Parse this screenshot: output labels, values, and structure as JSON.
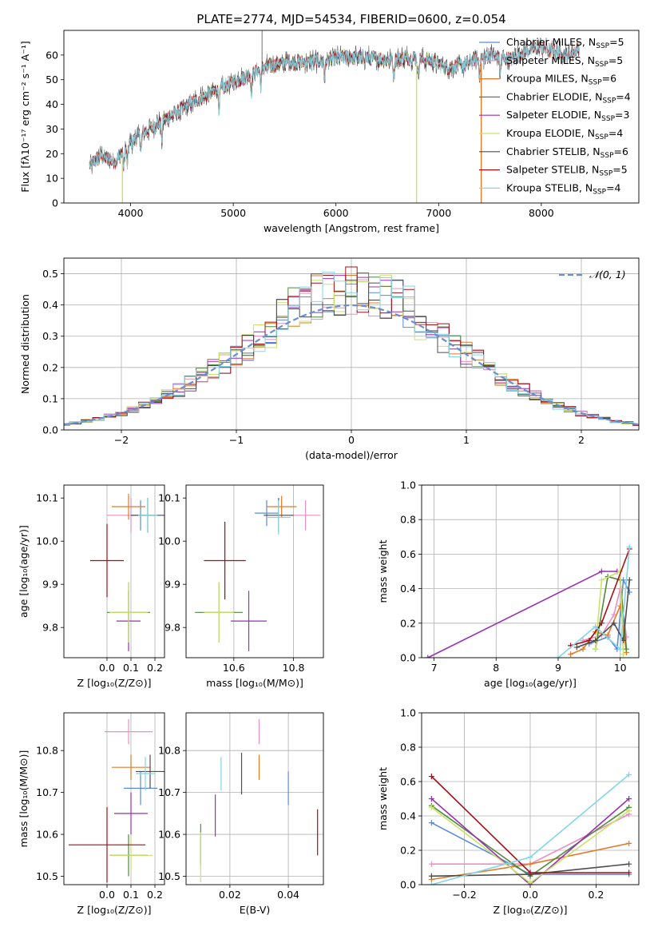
{
  "figure_title": "PLATE=2774, MJD=54534, FIBERID=0600, z=0.054",
  "colors": {
    "chab_miles": "#5b8bd8",
    "salp_miles": "#e98fc2",
    "krou_miles": "#e07b2a",
    "chab_elodie": "#4f8a3c",
    "salp_elodie": "#9b2fb5",
    "krou_elodie": "#c9e36a",
    "chab_stelib": "#4d4d4d",
    "salp_stelib": "#a40f1a",
    "krou_stelib": "#84d6e3",
    "normal_curve": "#6a8fd0",
    "grid": "#b0b0b0"
  },
  "chart_data": [
    {
      "id": "spectrum",
      "type": "line",
      "title": "PLATE=2774, MJD=54534, FIBERID=0600, z=0.054",
      "xlabel": "wavelength [Angstrom, rest frame]",
      "ylabel": "Flux [fλ10⁻¹⁷ erg cm⁻² s⁻¹ A⁻¹]",
      "xlim": [
        3350,
        8950
      ],
      "ylim": [
        0,
        70
      ],
      "xticks": [
        4000,
        5000,
        6000,
        7000,
        8000
      ],
      "yticks": [
        0,
        10,
        20,
        30,
        40,
        50,
        60
      ],
      "grid": false,
      "legend_position": "top-right",
      "legend": [
        {
          "label": "Chabrier MILES, N",
          "sub": "SSP",
          "tail": "=5",
          "color": "chab_miles"
        },
        {
          "label": "Salpeter MILES, N",
          "sub": "SSP",
          "tail": "=5",
          "color": "salp_miles"
        },
        {
          "label": "Kroupa MILES, N",
          "sub": "SSP",
          "tail": "=6",
          "color": "krou_miles"
        },
        {
          "label": "Chabrier ELODIE, N",
          "sub": "SSP",
          "tail": "=4",
          "color": "chab_elodie"
        },
        {
          "label": "Salpeter ELODIE, N",
          "sub": "SSP",
          "tail": "=3",
          "color": "salp_elodie"
        },
        {
          "label": "Kroupa ELODIE, N",
          "sub": "SSP",
          "tail": "=4",
          "color": "krou_elodie"
        },
        {
          "label": "Chabrier STELIB, N",
          "sub": "SSP",
          "tail": "=6",
          "color": "chab_stelib"
        },
        {
          "label": "Salpeter STELIB, N",
          "sub": "SSP",
          "tail": "=5",
          "color": "salp_stelib"
        },
        {
          "label": "Kroupa STELIB, N",
          "sub": "SSP",
          "tail": "=4",
          "color": "krou_stelib"
        }
      ],
      "continuum": [
        [
          3600,
          15
        ],
        [
          3700,
          19
        ],
        [
          3850,
          17
        ],
        [
          3950,
          22
        ],
        [
          4100,
          28
        ],
        [
          4300,
          33
        ],
        [
          4500,
          38
        ],
        [
          4700,
          43
        ],
        [
          4900,
          47
        ],
        [
          5100,
          51
        ],
        [
          5300,
          55
        ],
        [
          5500,
          57
        ],
        [
          5700,
          57
        ],
        [
          5900,
          58
        ],
        [
          6100,
          59
        ],
        [
          6300,
          59
        ],
        [
          6500,
          58
        ],
        [
          6700,
          59
        ],
        [
          6900,
          58
        ],
        [
          7100,
          55
        ],
        [
          7250,
          56
        ],
        [
          7350,
          58
        ],
        [
          7500,
          60
        ],
        [
          7700,
          58
        ],
        [
          7850,
          62
        ],
        [
          8000,
          63
        ],
        [
          8150,
          61
        ],
        [
          8250,
          60
        ],
        [
          8370,
          63
        ]
      ],
      "absorption_lines": [
        3933,
        3968,
        4102,
        4304,
        4861,
        5175,
        5270,
        5890,
        6563,
        6800,
        7400,
        7600
      ],
      "drops": [
        {
          "x": 3920,
          "series": "krou_elodie"
        },
        {
          "x": 6785,
          "series": "krou_elodie"
        },
        {
          "x": 7415,
          "series": "krou_miles"
        }
      ]
    },
    {
      "id": "residuals",
      "type": "histogram",
      "xlabel": "(data-model)/error",
      "ylabel": "Normed distribution",
      "xlim": [
        -2.5,
        2.5
      ],
      "ylim": [
        0,
        0.55
      ],
      "xticks": [
        -2,
        -1,
        0,
        1,
        2
      ],
      "yticks": [
        0.0,
        0.1,
        0.2,
        0.3,
        0.4,
        0.5
      ],
      "grid": true,
      "legend_position": "top-right",
      "legend_label": "𝒩(0, 1)",
      "bin_width": 0.1,
      "normal_curve": {
        "mean": 0,
        "sigma": 1
      }
    },
    {
      "id": "z_age",
      "type": "errorbar",
      "xlabel": "Z [log₁₀(Z/Z⊙)]",
      "ylabel": "age  [log₁₀(age/yr)]",
      "xlim": [
        -0.18,
        0.24
      ],
      "ylim": [
        9.73,
        10.13
      ],
      "xticks": [
        0.0,
        0.1,
        0.2
      ],
      "yticks": [
        9.8,
        9.9,
        10.0,
        10.1
      ],
      "points": [
        {
          "s": "chab_miles",
          "x": 0.14,
          "y": 10.06,
          "xe": 0.04,
          "ye": 0.035
        },
        {
          "s": "salp_miles",
          "x": 0.1,
          "y": 10.06,
          "xe": 0.1,
          "ye": 0.04
        },
        {
          "s": "krou_miles",
          "x": 0.09,
          "y": 10.08,
          "xe": 0.07,
          "ye": 0.03
        },
        {
          "s": "chab_elodie",
          "x": 0.09,
          "y": 9.835,
          "xe": 0.09,
          "ye": 0.07
        },
        {
          "s": "salp_elodie",
          "x": 0.09,
          "y": 9.815,
          "xe": 0.05,
          "ye": 0.07
        },
        {
          "s": "krou_elodie",
          "x": 0.09,
          "y": 9.835,
          "xe": 0.08,
          "ye": 0.07
        },
        {
          "s": "chab_stelib",
          "x": 0.17,
          "y": 10.06,
          "xe": 0.07,
          "ye": 0.04
        },
        {
          "s": "salp_stelib",
          "x": 0.0,
          "y": 9.955,
          "xe": 0.07,
          "ye": 0.085
        },
        {
          "s": "krou_stelib",
          "x": 0.17,
          "y": 10.06,
          "xe": 0.04,
          "ye": 0.04
        }
      ]
    },
    {
      "id": "mass_age",
      "type": "errorbar",
      "xlabel": "mass [log₁₀(M/M⊙)]",
      "ylabel": "",
      "xlim": [
        10.44,
        10.9
      ],
      "ylim": [
        9.73,
        10.13
      ],
      "xticks": [
        10.6,
        10.8
      ],
      "yticks": [
        9.8,
        9.9,
        10.0,
        10.1
      ],
      "points": [
        {
          "s": "chab_miles",
          "x": 10.71,
          "y": 10.065,
          "xe": 0.04,
          "ye": 0.03
        },
        {
          "s": "salp_miles",
          "x": 10.84,
          "y": 10.06,
          "xe": 0.05,
          "ye": 0.035
        },
        {
          "s": "krou_miles",
          "x": 10.76,
          "y": 10.08,
          "xe": 0.05,
          "ye": 0.025
        },
        {
          "s": "chab_elodie",
          "x": 10.55,
          "y": 9.835,
          "xe": 0.08,
          "ye": 0.07
        },
        {
          "s": "salp_elodie",
          "x": 10.65,
          "y": 9.815,
          "xe": 0.06,
          "ye": 0.07
        },
        {
          "s": "krou_elodie",
          "x": 10.55,
          "y": 9.835,
          "xe": 0.05,
          "ye": 0.07
        },
        {
          "s": "chab_stelib",
          "x": 10.75,
          "y": 10.06,
          "xe": 0.05,
          "ye": 0.04
        },
        {
          "s": "salp_stelib",
          "x": 10.57,
          "y": 9.955,
          "xe": 0.07,
          "ye": 0.09
        },
        {
          "s": "krou_stelib",
          "x": 10.75,
          "y": 10.055,
          "xe": 0.04,
          "ye": 0.04
        }
      ]
    },
    {
      "id": "age_weight",
      "type": "line",
      "xlabel": "age  [log₁₀(age/yr)]",
      "ylabel": "mass weight",
      "xlim": [
        6.8,
        10.3
      ],
      "ylim": [
        0,
        1
      ],
      "xticks": [
        7,
        8,
        9,
        10
      ],
      "yticks": [
        0.0,
        0.2,
        0.4,
        0.6,
        0.8,
        1.0
      ],
      "grid": true,
      "series": [
        {
          "s": "chab_miles",
          "x": [
            9.5,
            9.8,
            9.95,
            10.05,
            10.15
          ],
          "y": [
            0.08,
            0.12,
            0.05,
            0.45,
            0.38
          ]
        },
        {
          "s": "salp_miles",
          "x": [
            9.4,
            9.7,
            9.9,
            10.0,
            10.1
          ],
          "y": [
            0.1,
            0.13,
            0.25,
            0.4,
            0.12
          ]
        },
        {
          "s": "krou_miles",
          "x": [
            9.2,
            9.4,
            9.6,
            9.8,
            10.0,
            10.1
          ],
          "y": [
            0.02,
            0.05,
            0.15,
            0.13,
            0.3,
            0.03
          ]
        },
        {
          "s": "chab_elodie",
          "x": [
            9.6,
            9.8,
            10.0,
            10.1
          ],
          "y": [
            0.05,
            0.47,
            0.45,
            0.05
          ]
        },
        {
          "s": "salp_elodie",
          "x": [
            6.9,
            9.7,
            9.95
          ],
          "y": [
            0.0,
            0.5,
            0.5
          ]
        },
        {
          "s": "krou_elodie",
          "x": [
            9.6,
            9.7,
            10.0,
            10.05
          ],
          "y": [
            0.05,
            0.45,
            0.5,
            0.02
          ]
        },
        {
          "s": "chab_stelib",
          "x": [
            9.3,
            9.6,
            9.9,
            10.05,
            10.15
          ],
          "y": [
            0.06,
            0.1,
            0.2,
            0.1,
            0.45
          ]
        },
        {
          "s": "salp_stelib",
          "x": [
            9.2,
            9.5,
            9.7,
            10.15
          ],
          "y": [
            0.07,
            0.1,
            0.2,
            0.63
          ]
        },
        {
          "s": "krou_stelib",
          "x": [
            9.0,
            9.6,
            10.0,
            10.15
          ],
          "y": [
            0.0,
            0.18,
            0.05,
            0.64
          ]
        }
      ]
    },
    {
      "id": "z_mass",
      "type": "errorbar",
      "xlabel": "Z [log₁₀(Z/Z⊙)]",
      "ylabel": "mass [log₁₀(M/M⊙)]",
      "xlim": [
        -0.18,
        0.24
      ],
      "ylim": [
        10.48,
        10.89
      ],
      "xticks": [
        0.0,
        0.1,
        0.2
      ],
      "yticks": [
        10.5,
        10.6,
        10.7,
        10.8
      ],
      "points": [
        {
          "s": "chab_miles",
          "x": 0.14,
          "y": 10.71,
          "xe": 0.07,
          "ye": 0.04
        },
        {
          "s": "salp_miles",
          "x": 0.09,
          "y": 10.845,
          "xe": 0.1,
          "ye": 0.03
        },
        {
          "s": "krou_miles",
          "x": 0.1,
          "y": 10.76,
          "xe": 0.08,
          "ye": 0.03
        },
        {
          "s": "chab_elodie",
          "x": 0.09,
          "y": 10.55,
          "xe": 0.08,
          "ye": 0.05
        },
        {
          "s": "salp_elodie",
          "x": 0.1,
          "y": 10.65,
          "xe": 0.07,
          "ye": 0.05
        },
        {
          "s": "krou_elodie",
          "x": 0.1,
          "y": 10.55,
          "xe": 0.09,
          "ye": 0.04
        },
        {
          "s": "chab_stelib",
          "x": 0.18,
          "y": 10.75,
          "xe": 0.06,
          "ye": 0.04
        },
        {
          "s": "salp_stelib",
          "x": 0.0,
          "y": 10.575,
          "xe": 0.16,
          "ye": 0.09
        },
        {
          "s": "krou_stelib",
          "x": 0.16,
          "y": 10.745,
          "xe": 0.04,
          "ye": 0.04
        }
      ]
    },
    {
      "id": "ebv_mass",
      "type": "errorbar",
      "xlabel": "E(B-V)",
      "ylabel": "",
      "xlim": [
        0.005,
        0.052
      ],
      "ylim": [
        10.48,
        10.89
      ],
      "xticks": [
        0.02,
        0.04
      ],
      "yticks": [
        10.5,
        10.6,
        10.7,
        10.8
      ],
      "grid": true,
      "points": [
        {
          "s": "chab_miles",
          "x": 0.04,
          "y": 10.71,
          "xe": 0.0,
          "ye": 0.04
        },
        {
          "s": "salp_miles",
          "x": 0.03,
          "y": 10.845,
          "xe": 0.0,
          "ye": 0.03
        },
        {
          "s": "krou_miles",
          "x": 0.03,
          "y": 10.76,
          "xe": 0.0,
          "ye": 0.03
        },
        {
          "s": "chab_elodie",
          "x": 0.01,
          "y": 10.575,
          "xe": 0.0,
          "ye": 0.05
        },
        {
          "s": "salp_elodie",
          "x": 0.015,
          "y": 10.645,
          "xe": 0.0,
          "ye": 0.05
        },
        {
          "s": "krou_elodie",
          "x": 0.01,
          "y": 10.545,
          "xe": 0.0,
          "ye": 0.06
        },
        {
          "s": "chab_stelib",
          "x": 0.024,
          "y": 10.745,
          "xe": 0.0,
          "ye": 0.05
        },
        {
          "s": "salp_stelib",
          "x": 0.05,
          "y": 10.605,
          "xe": 0.0,
          "ye": 0.055
        },
        {
          "s": "krou_stelib",
          "x": 0.017,
          "y": 10.745,
          "xe": 0.0,
          "ye": 0.04
        }
      ]
    },
    {
      "id": "z_weight",
      "type": "line",
      "xlabel": "Z [log₁₀(Z/Z⊙)]",
      "ylabel": "mass weight",
      "xlim": [
        -0.33,
        0.33
      ],
      "ylim": [
        0,
        1
      ],
      "xticks": [
        -0.2,
        0.0,
        0.2
      ],
      "yticks": [
        0.0,
        0.2,
        0.4,
        0.6,
        0.8,
        1.0
      ],
      "grid": true,
      "series": [
        {
          "s": "chab_miles",
          "x": [
            -0.3,
            0.0,
            0.3
          ],
          "y": [
            0.36,
            0.06,
            0.06
          ]
        },
        {
          "s": "salp_miles",
          "x": [
            -0.3,
            0.0,
            0.3
          ],
          "y": [
            0.12,
            0.12,
            0.41
          ]
        },
        {
          "s": "krou_miles",
          "x": [
            -0.3,
            0.0,
            0.3
          ],
          "y": [
            0.03,
            0.12,
            0.24
          ]
        },
        {
          "s": "chab_elodie",
          "x": [
            -0.3,
            0.0,
            0.3
          ],
          "y": [
            0.46,
            0.05,
            0.45
          ]
        },
        {
          "s": "salp_elodie",
          "x": [
            -0.3,
            0.0,
            0.3
          ],
          "y": [
            0.5,
            0.0,
            0.5
          ]
        },
        {
          "s": "krou_elodie",
          "x": [
            -0.3,
            0.0,
            0.3
          ],
          "y": [
            0.45,
            0.01,
            0.43
          ]
        },
        {
          "s": "chab_stelib",
          "x": [
            -0.3,
            0.0,
            0.3
          ],
          "y": [
            0.05,
            0.06,
            0.12
          ]
        },
        {
          "s": "salp_stelib",
          "x": [
            -0.3,
            0.0,
            0.3
          ],
          "y": [
            0.63,
            0.07,
            0.07
          ]
        },
        {
          "s": "krou_stelib",
          "x": [
            -0.3,
            0.0,
            0.3
          ],
          "y": [
            0.0,
            0.16,
            0.64
          ]
        }
      ]
    }
  ]
}
